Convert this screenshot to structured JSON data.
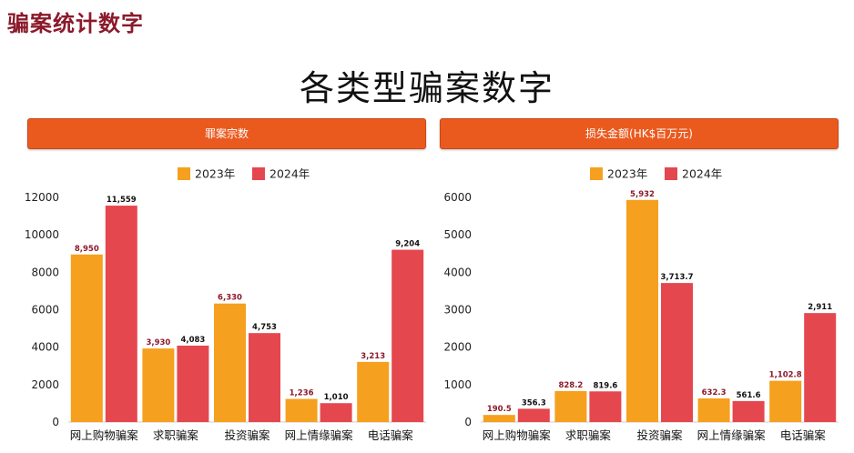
{
  "page_header": "骗案统计数字",
  "main_title": "各类型骗案数字",
  "colors": {
    "year_2023": "#f5a01e",
    "year_2024": "#e5474f",
    "banner": "#ea5a1f",
    "header": "#8b1a2b"
  },
  "chart_data": [
    {
      "type": "bar",
      "title": "罪案宗数",
      "categories": [
        "网上购物骗案",
        "求职骗案",
        "投资骗案",
        "网上情缘骗案",
        "电话骗案"
      ],
      "series": [
        {
          "name": "2023年",
          "values": [
            8950,
            3930,
            6330,
            1236,
            3213
          ],
          "labels": [
            "8,950",
            "3,930",
            "6,330",
            "1,236",
            "3,213"
          ]
        },
        {
          "name": "2024年",
          "values": [
            11559,
            4083,
            4753,
            1010,
            9204
          ],
          "labels": [
            "11,559",
            "4,083",
            "4,753",
            "1,010",
            "9,204"
          ]
        }
      ],
      "yticks": [
        "0",
        "2000",
        "4000",
        "6000",
        "8000",
        "10000",
        "12000"
      ],
      "ylim": [
        0,
        12000
      ],
      "legend": "top-center",
      "grid": false
    },
    {
      "type": "bar",
      "title": "损失金额(HK$百万元)",
      "categories": [
        "网上购物骗案",
        "求职骗案",
        "投资骗案",
        "网上情缘骗案",
        "电话骗案"
      ],
      "series": [
        {
          "name": "2023年",
          "values": [
            190.5,
            828.2,
            5932,
            632.3,
            1102.8
          ],
          "labels": [
            "190.5",
            "828.2",
            "5,932",
            "632.3",
            "1,102.8"
          ]
        },
        {
          "name": "2024年",
          "values": [
            356.3,
            819.6,
            3713.7,
            561.6,
            2911
          ],
          "labels": [
            "356.3",
            "819.6",
            "3,713.7",
            "561.6",
            "2,911"
          ]
        }
      ],
      "yticks": [
        "0",
        "1000",
        "2000",
        "3000",
        "4000",
        "5000",
        "6000"
      ],
      "ylim": [
        0,
        6000
      ],
      "legend": "top-center",
      "grid": false
    }
  ]
}
